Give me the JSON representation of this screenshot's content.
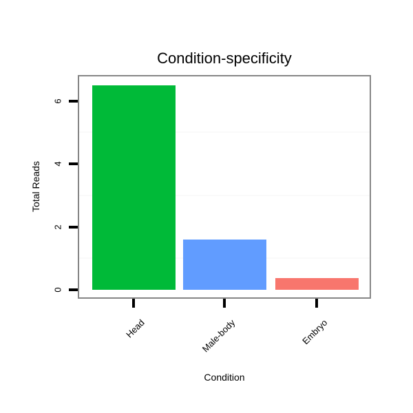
{
  "title": "Condition-specificity",
  "chart_data": {
    "type": "bar",
    "title": "Condition-specificity",
    "xlabel": "Condition",
    "ylabel": "Total Reads",
    "categories": [
      "Head",
      "Male-body",
      "Embryo"
    ],
    "values": [
      6.5,
      1.6,
      0.37
    ],
    "bar_colors": [
      "#00BA38",
      "#619CFF",
      "#F8766D"
    ],
    "yticks": [
      0,
      2,
      4,
      6
    ],
    "minor_gridlines": [
      1,
      3,
      5
    ],
    "ylim": [
      0,
      6.8
    ],
    "grid": "faint horizontal minor gridlines only",
    "legend": "none",
    "x_label_rotation_deg": 45
  },
  "colors": {
    "background": "#FFFFFF",
    "panel_border": "#858585",
    "gridline": "#FAFAFA",
    "tick": "#000000",
    "text": "#000000"
  }
}
